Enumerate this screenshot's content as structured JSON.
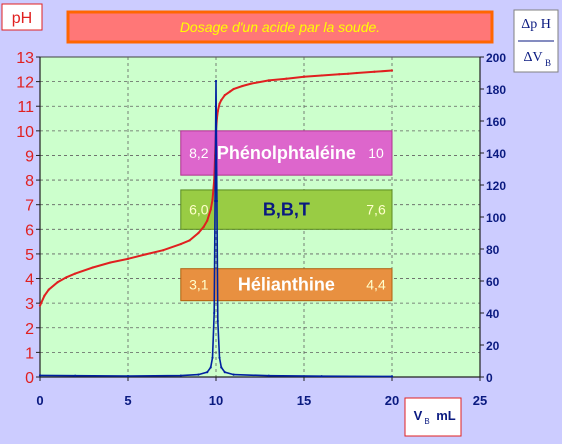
{
  "chart_data": {
    "type": "line",
    "title": "Dosage d'un acide  par la soude.",
    "xlabel_main": "V",
    "xlabel_sub": "B",
    "xlabel_unit": "mL",
    "ylabel_left": "pH",
    "ylabel_right_num": "Δp H",
    "ylabel_right_den_main": "ΔV",
    "ylabel_right_den_sub": "B",
    "xlim": [
      0,
      25
    ],
    "ylim_left": [
      0,
      13
    ],
    "ylim_right": [
      0,
      200
    ],
    "x_ticks": [
      0,
      5,
      10,
      15,
      20,
      25
    ],
    "y_left_ticks": [
      0,
      1,
      2,
      3,
      4,
      5,
      6,
      7,
      8,
      9,
      10,
      11,
      12,
      13
    ],
    "y_right_ticks": [
      0,
      20,
      40,
      60,
      80,
      100,
      120,
      140,
      160,
      180,
      200
    ],
    "grid": true,
    "series": [
      {
        "axis": "left",
        "color": "#e02020",
        "x": [
          0,
          0.25,
          0.5,
          1,
          1.5,
          2,
          3,
          4,
          5,
          6,
          7,
          8,
          8.5,
          9,
          9.3,
          9.5,
          9.7,
          9.8,
          9.9,
          9.95,
          10,
          10.05,
          10.1,
          10.2,
          10.3,
          10.5,
          10.8,
          11,
          11.5,
          12,
          13,
          14,
          15,
          16,
          17,
          17.5,
          18,
          19,
          20
        ],
        "y": [
          2.9,
          3.3,
          3.55,
          3.85,
          4.05,
          4.2,
          4.45,
          4.65,
          4.8,
          4.98,
          5.15,
          5.4,
          5.55,
          5.85,
          6.1,
          6.35,
          6.8,
          7.2,
          8.0,
          9.0,
          10.0,
          10.5,
          10.8,
          11.1,
          11.25,
          11.45,
          11.6,
          11.7,
          11.82,
          11.92,
          12.05,
          12.12,
          12.2,
          12.25,
          12.3,
          12.32,
          12.35,
          12.4,
          12.45
        ]
      },
      {
        "axis": "right",
        "color": "#0020a0",
        "x": [
          0,
          2,
          5,
          8,
          9,
          9.5,
          9.7,
          9.8,
          9.9,
          9.95,
          10,
          10.05,
          10.1,
          10.2,
          10.3,
          10.5,
          11,
          13,
          16,
          20
        ],
        "y": [
          1,
          0.8,
          0.6,
          0.9,
          1.5,
          3,
          6,
          12,
          40,
          110,
          185,
          110,
          35,
          12,
          6,
          3,
          1.5,
          0.8,
          0.5,
          0.4
        ]
      }
    ],
    "indicators": [
      {
        "low": "8,2",
        "name": "Phénolphtaléine",
        "high": "10",
        "ylow": 8.2,
        "yhigh": 10,
        "fill": "#dd66cc",
        "stroke": "#b03090",
        "text_color": "#ffffff",
        "name_color": "#ffffff"
      },
      {
        "low": "6,0",
        "name": "B,B,T",
        "high": "7,6",
        "ylow": 6.0,
        "yhigh": 7.6,
        "fill": "#99cc44",
        "stroke": "#5a8a20",
        "text_color": "#ffffcc",
        "name_color": "#0a1a80"
      },
      {
        "low": "3,1",
        "name": "Hélianthine",
        "high": "4,4",
        "ylow": 3.1,
        "yhigh": 4.4,
        "fill": "#e89040",
        "stroke": "#b06010",
        "text_color": "#ffffcc",
        "name_color": "#ffffff"
      }
    ]
  }
}
